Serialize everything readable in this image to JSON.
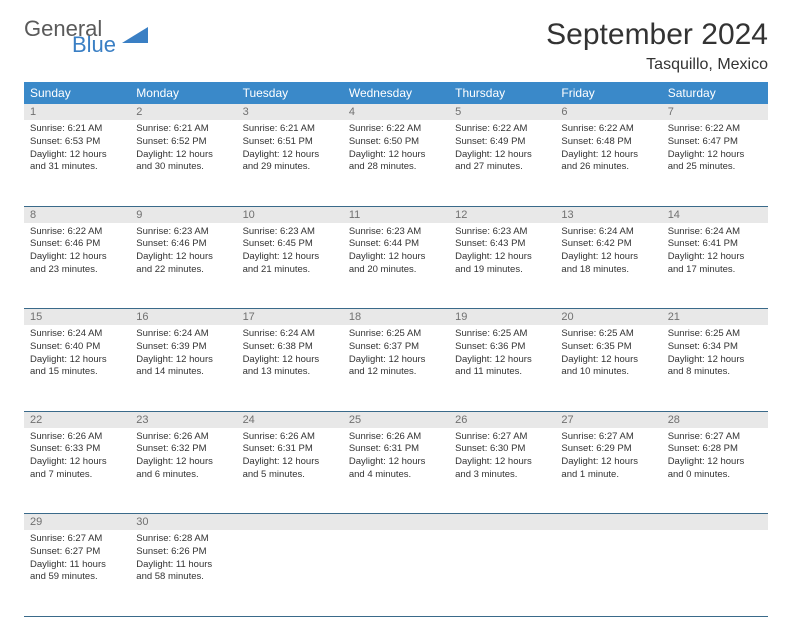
{
  "logo": {
    "text1": "General",
    "text2": "Blue"
  },
  "header": {
    "title": "September 2024",
    "location": "Tasquillo, Mexico"
  },
  "colors": {
    "header_bg": "#3a89c9",
    "header_fg": "#ffffff",
    "daynum_bg": "#e8e8e8",
    "daynum_fg": "#707070",
    "border": "#3a6a8a",
    "logo_gray": "#5a5a5a",
    "logo_blue": "#3a7fc4"
  },
  "weekdays": [
    "Sunday",
    "Monday",
    "Tuesday",
    "Wednesday",
    "Thursday",
    "Friday",
    "Saturday"
  ],
  "weeks": [
    {
      "nums": [
        "1",
        "2",
        "3",
        "4",
        "5",
        "6",
        "7"
      ],
      "cells": [
        {
          "sunrise": "6:21 AM",
          "sunset": "6:53 PM",
          "daylight": "12 hours and 31 minutes."
        },
        {
          "sunrise": "6:21 AM",
          "sunset": "6:52 PM",
          "daylight": "12 hours and 30 minutes."
        },
        {
          "sunrise": "6:21 AM",
          "sunset": "6:51 PM",
          "daylight": "12 hours and 29 minutes."
        },
        {
          "sunrise": "6:22 AM",
          "sunset": "6:50 PM",
          "daylight": "12 hours and 28 minutes."
        },
        {
          "sunrise": "6:22 AM",
          "sunset": "6:49 PM",
          "daylight": "12 hours and 27 minutes."
        },
        {
          "sunrise": "6:22 AM",
          "sunset": "6:48 PM",
          "daylight": "12 hours and 26 minutes."
        },
        {
          "sunrise": "6:22 AM",
          "sunset": "6:47 PM",
          "daylight": "12 hours and 25 minutes."
        }
      ]
    },
    {
      "nums": [
        "8",
        "9",
        "10",
        "11",
        "12",
        "13",
        "14"
      ],
      "cells": [
        {
          "sunrise": "6:22 AM",
          "sunset": "6:46 PM",
          "daylight": "12 hours and 23 minutes."
        },
        {
          "sunrise": "6:23 AM",
          "sunset": "6:46 PM",
          "daylight": "12 hours and 22 minutes."
        },
        {
          "sunrise": "6:23 AM",
          "sunset": "6:45 PM",
          "daylight": "12 hours and 21 minutes."
        },
        {
          "sunrise": "6:23 AM",
          "sunset": "6:44 PM",
          "daylight": "12 hours and 20 minutes."
        },
        {
          "sunrise": "6:23 AM",
          "sunset": "6:43 PM",
          "daylight": "12 hours and 19 minutes."
        },
        {
          "sunrise": "6:24 AM",
          "sunset": "6:42 PM",
          "daylight": "12 hours and 18 minutes."
        },
        {
          "sunrise": "6:24 AM",
          "sunset": "6:41 PM",
          "daylight": "12 hours and 17 minutes."
        }
      ]
    },
    {
      "nums": [
        "15",
        "16",
        "17",
        "18",
        "19",
        "20",
        "21"
      ],
      "cells": [
        {
          "sunrise": "6:24 AM",
          "sunset": "6:40 PM",
          "daylight": "12 hours and 15 minutes."
        },
        {
          "sunrise": "6:24 AM",
          "sunset": "6:39 PM",
          "daylight": "12 hours and 14 minutes."
        },
        {
          "sunrise": "6:24 AM",
          "sunset": "6:38 PM",
          "daylight": "12 hours and 13 minutes."
        },
        {
          "sunrise": "6:25 AM",
          "sunset": "6:37 PM",
          "daylight": "12 hours and 12 minutes."
        },
        {
          "sunrise": "6:25 AM",
          "sunset": "6:36 PM",
          "daylight": "12 hours and 11 minutes."
        },
        {
          "sunrise": "6:25 AM",
          "sunset": "6:35 PM",
          "daylight": "12 hours and 10 minutes."
        },
        {
          "sunrise": "6:25 AM",
          "sunset": "6:34 PM",
          "daylight": "12 hours and 8 minutes."
        }
      ]
    },
    {
      "nums": [
        "22",
        "23",
        "24",
        "25",
        "26",
        "27",
        "28"
      ],
      "cells": [
        {
          "sunrise": "6:26 AM",
          "sunset": "6:33 PM",
          "daylight": "12 hours and 7 minutes."
        },
        {
          "sunrise": "6:26 AM",
          "sunset": "6:32 PM",
          "daylight": "12 hours and 6 minutes."
        },
        {
          "sunrise": "6:26 AM",
          "sunset": "6:31 PM",
          "daylight": "12 hours and 5 minutes."
        },
        {
          "sunrise": "6:26 AM",
          "sunset": "6:31 PM",
          "daylight": "12 hours and 4 minutes."
        },
        {
          "sunrise": "6:27 AM",
          "sunset": "6:30 PM",
          "daylight": "12 hours and 3 minutes."
        },
        {
          "sunrise": "6:27 AM",
          "sunset": "6:29 PM",
          "daylight": "12 hours and 1 minute."
        },
        {
          "sunrise": "6:27 AM",
          "sunset": "6:28 PM",
          "daylight": "12 hours and 0 minutes."
        }
      ]
    },
    {
      "nums": [
        "29",
        "30",
        "",
        "",
        "",
        "",
        ""
      ],
      "cells": [
        {
          "sunrise": "6:27 AM",
          "sunset": "6:27 PM",
          "daylight": "11 hours and 59 minutes."
        },
        {
          "sunrise": "6:28 AM",
          "sunset": "6:26 PM",
          "daylight": "11 hours and 58 minutes."
        },
        null,
        null,
        null,
        null,
        null
      ]
    }
  ],
  "labels": {
    "sunrise": "Sunrise:",
    "sunset": "Sunset:",
    "daylight": "Daylight:"
  }
}
